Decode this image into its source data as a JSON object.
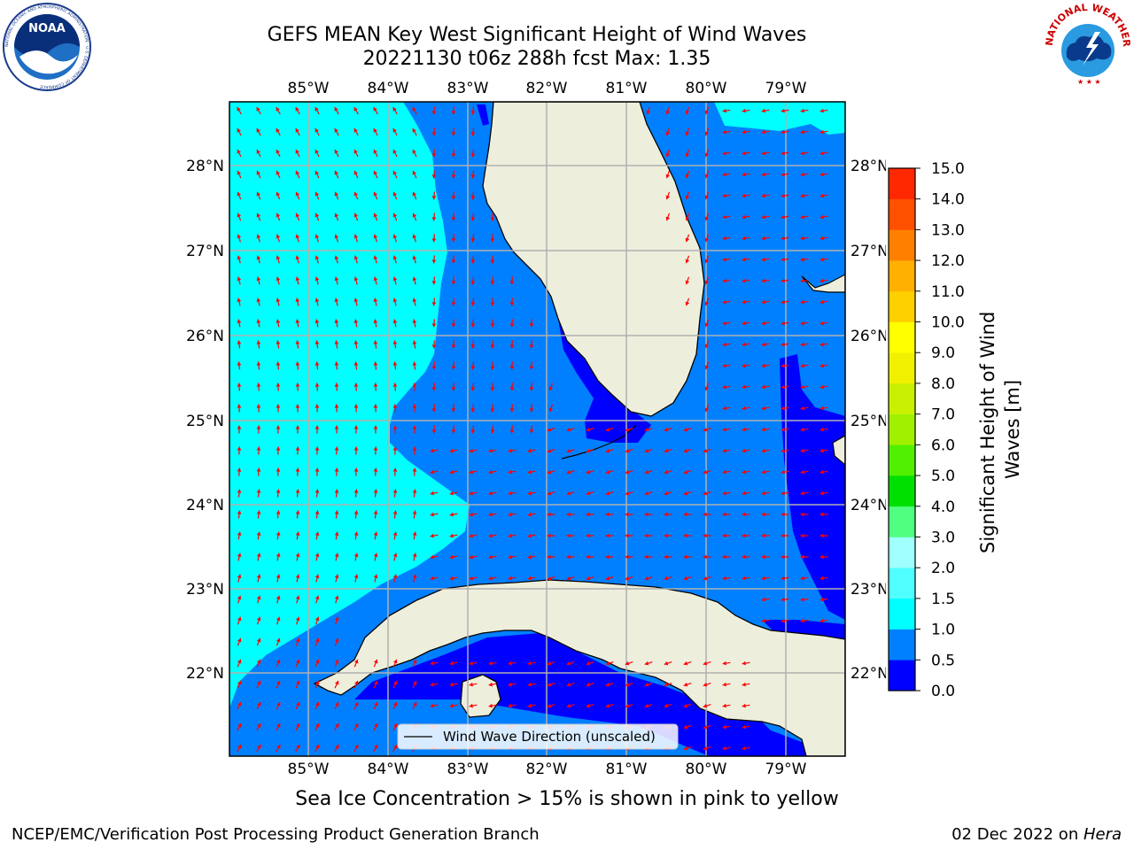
{
  "header": {
    "title_line1": "GEFS MEAN Key West Significant Height of Wind Waves",
    "title_line2": "20221130 t06z 288h fcst   Max: 1.35"
  },
  "logos": {
    "noaa_label": "NOAA",
    "noaa_ring_text": "NATIONAL OCEANIC AND ATMOSPHERIC ADMINISTRATION · U.S. DEPARTMENT OF COMMERCE",
    "nws_ring_text": "NATIONAL WEATHER SERVICE"
  },
  "map": {
    "lon_labels": [
      "85°W",
      "84°W",
      "83°W",
      "82°W",
      "81°W",
      "80°W",
      "79°W"
    ],
    "lat_labels": [
      "28°N",
      "27°N",
      "26°N",
      "25°N",
      "24°N",
      "23°N",
      "22°N"
    ],
    "legend_label": "Wind Wave Direction (unscaled)",
    "arrow_color": "#ff0000",
    "land_color": "#eeeedd"
  },
  "colorbar": {
    "label": "Significant Height of Wind Waves [m]",
    "ticks": [
      "0.0",
      "0.5",
      "1.0",
      "1.5",
      "2.0",
      "3.0",
      "4.0",
      "5.0",
      "6.0",
      "7.0",
      "8.0",
      "9.0",
      "10.0",
      "11.0",
      "12.0",
      "13.0",
      "14.0",
      "15.0"
    ],
    "colors": [
      "#0000ff",
      "#0080ff",
      "#00ffff",
      "#50ffff",
      "#a0ffff",
      "#50ff80",
      "#00e000",
      "#50f000",
      "#a0f000",
      "#c8f000",
      "#f0f000",
      "#ffff00",
      "#ffd000",
      "#ffb000",
      "#ff8000",
      "#ff5000",
      "#ff2800"
    ]
  },
  "footer": {
    "note": "Sea Ice Concentration > 15% is shown in pink to yellow",
    "left": "NCEP/EMC/Verification Post Processing Product Generation Branch",
    "right_date": "02 Dec 2022 on ",
    "right_host": "Hera"
  }
}
